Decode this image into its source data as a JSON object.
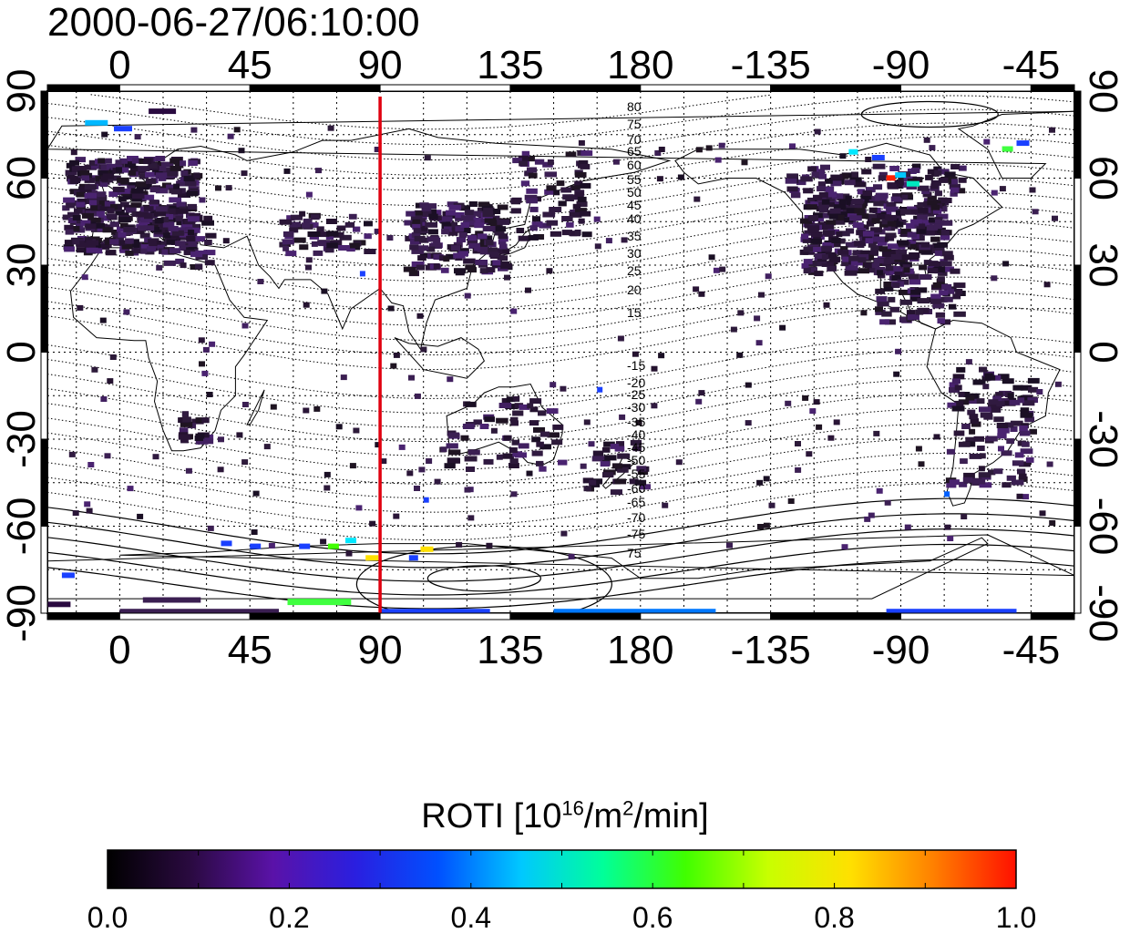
{
  "title": "2000-06-27/06:10:00",
  "map": {
    "top_lon_ticks": [
      "0",
      "45",
      "90",
      "135",
      "180",
      "-135",
      "-90",
      "-45"
    ],
    "bottom_lon_ticks": [
      "0",
      "45",
      "90",
      "135",
      "180",
      "-135",
      "-90",
      "-45"
    ],
    "left_lat_ticks": [
      "90",
      "60",
      "30",
      "0",
      "-30",
      "-60",
      "-90"
    ],
    "right_lat_ticks": [
      "90",
      "60",
      "30",
      "0",
      "-30",
      "-60",
      "-90"
    ],
    "lon_range": [
      -25,
      330
    ],
    "lat_range": [
      -90,
      90
    ],
    "marker_longitude": 90,
    "marker_color": "#e0000f",
    "contour_labels_north": [
      "80",
      "75",
      "70",
      "65",
      "60",
      "55",
      "50",
      "45",
      "40",
      "35",
      "30",
      "25",
      "20",
      "15"
    ],
    "contour_labels_south": [
      "-15",
      "-20",
      "-25",
      "-30",
      "-35",
      "-40",
      "-45",
      "-50",
      "-55",
      "-60",
      "-65",
      "-70",
      "-75"
    ],
    "grid": "dotted",
    "coastlines": true
  },
  "colorbar": {
    "title_main": "ROTI  [10",
    "title_exp1": "16",
    "title_mid": "/m",
    "title_exp2": "2",
    "title_end": "/min]",
    "tick_labels": [
      "0.0",
      "0.2",
      "0.4",
      "0.6",
      "0.8",
      "1.0"
    ],
    "range": [
      0.0,
      1.0
    ],
    "colormap_stops": [
      "#000000",
      "#2a0a40",
      "#5a12a8",
      "#2a1fe0",
      "#0050ff",
      "#00c8ff",
      "#00ff9a",
      "#40ff00",
      "#c8ff00",
      "#ffe000",
      "#ff8000",
      "#ff1000"
    ]
  }
}
